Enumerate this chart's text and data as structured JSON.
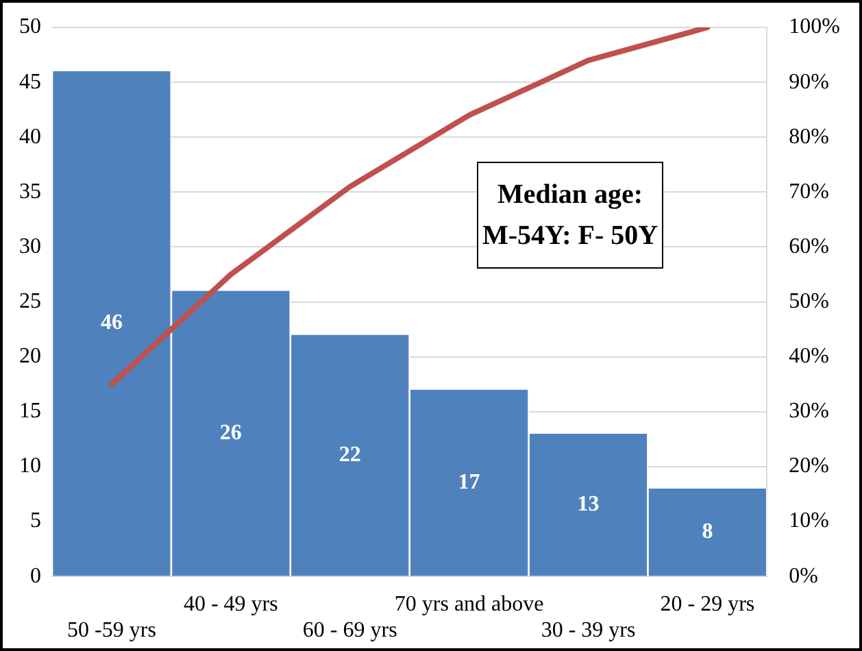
{
  "chart_data": {
    "type": "bar",
    "categories": [
      "50 -59 yrs",
      "40 - 49 yrs",
      "60 - 69 yrs",
      "70 yrs and above",
      "30 - 39 yrs",
      "20 - 29 yrs"
    ],
    "series": [
      {
        "color": "#4f81bd",
        "values": [
          46,
          26,
          22,
          17,
          13,
          8
        ],
        "value_labels": [
          "46",
          "26",
          "22",
          "17",
          "13",
          "8"
        ]
      },
      {
        "type": "line",
        "axis": "y2",
        "color": "#c0504d",
        "values": [
          35,
          55,
          71,
          84,
          94,
          100
        ]
      }
    ],
    "ylim": [
      0,
      50
    ],
    "yticks": [
      0,
      5,
      10,
      15,
      20,
      25,
      30,
      35,
      40,
      45,
      50
    ],
    "y2lim": [
      0,
      100
    ],
    "y2ticks": [
      {
        "value": 0,
        "label": "0%"
      },
      {
        "value": 10,
        "label": "10%"
      },
      {
        "value": 20,
        "label": "20%"
      },
      {
        "value": 30,
        "label": "30%"
      },
      {
        "value": 40,
        "label": "40%"
      },
      {
        "value": 50,
        "label": "50%"
      },
      {
        "value": 60,
        "label": "60%"
      },
      {
        "value": 70,
        "label": "70%"
      },
      {
        "value": 80,
        "label": "80%"
      },
      {
        "value": 90,
        "label": "90%"
      },
      {
        "value": 100,
        "label": "100%"
      }
    ],
    "annotations": [
      "Median age:",
      "M-54Y: F- 50Y"
    ],
    "grid": "y",
    "legend": false,
    "marker": "none"
  }
}
